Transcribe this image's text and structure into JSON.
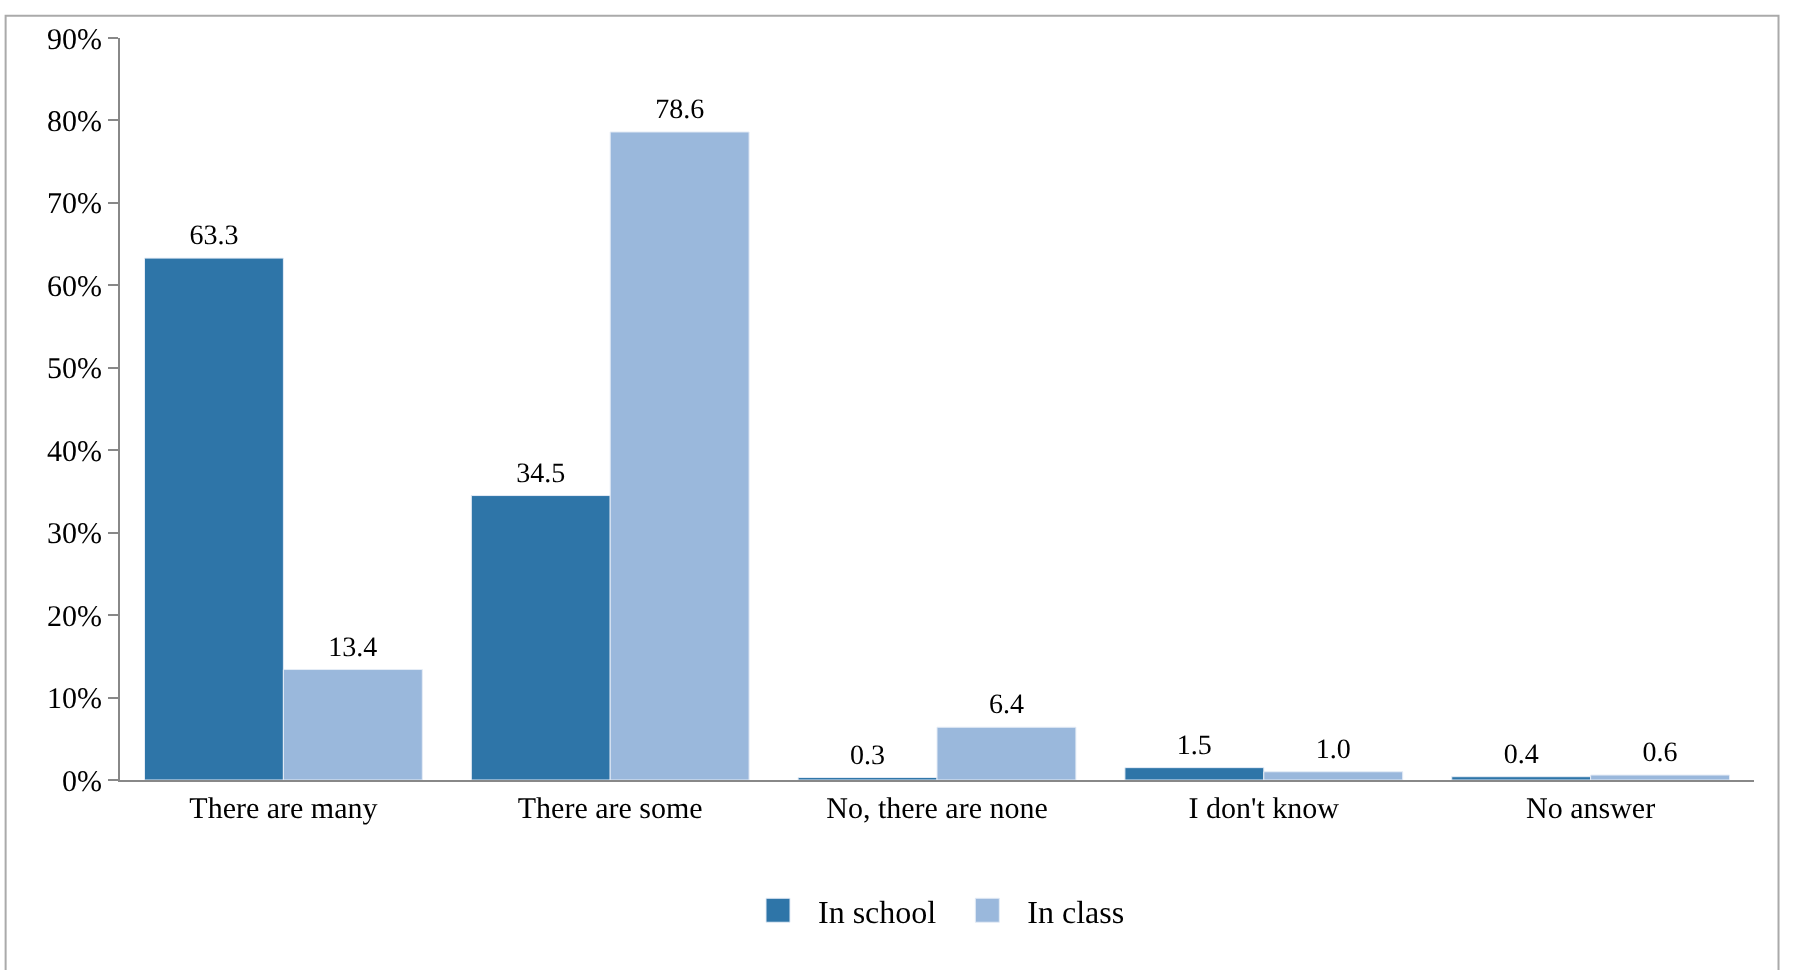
{
  "chart_data": {
    "type": "bar",
    "categories": [
      "There are many",
      "There are some",
      "No, there are none",
      "I don't know",
      "No answer"
    ],
    "series": [
      {
        "name": "In school",
        "color": "#2e75a8",
        "values": [
          63.3,
          34.5,
          0.3,
          1.5,
          0.4
        ],
        "value_labels": [
          "63.3",
          "34.5",
          "0.3",
          "1.5",
          "0.4"
        ]
      },
      {
        "name": "In class",
        "color": "#9ab8dc",
        "values": [
          13.4,
          78.6,
          6.4,
          1.0,
          0.6
        ],
        "value_labels": [
          "13.4",
          "78.6",
          "6.4",
          "1.0",
          "0.6"
        ]
      }
    ],
    "ylim": [
      0,
      90
    ],
    "yticks": [
      {
        "value": 0,
        "label": "0%"
      },
      {
        "value": 10,
        "label": "10%"
      },
      {
        "value": 20,
        "label": "20%"
      },
      {
        "value": 30,
        "label": "30%"
      },
      {
        "value": 40,
        "label": "40%"
      },
      {
        "value": 50,
        "label": "50%"
      },
      {
        "value": 60,
        "label": "60%"
      },
      {
        "value": 70,
        "label": "70%"
      },
      {
        "value": 80,
        "label": "80%"
      },
      {
        "value": 90,
        "label": "90%"
      }
    ],
    "legend": "bottom"
  }
}
